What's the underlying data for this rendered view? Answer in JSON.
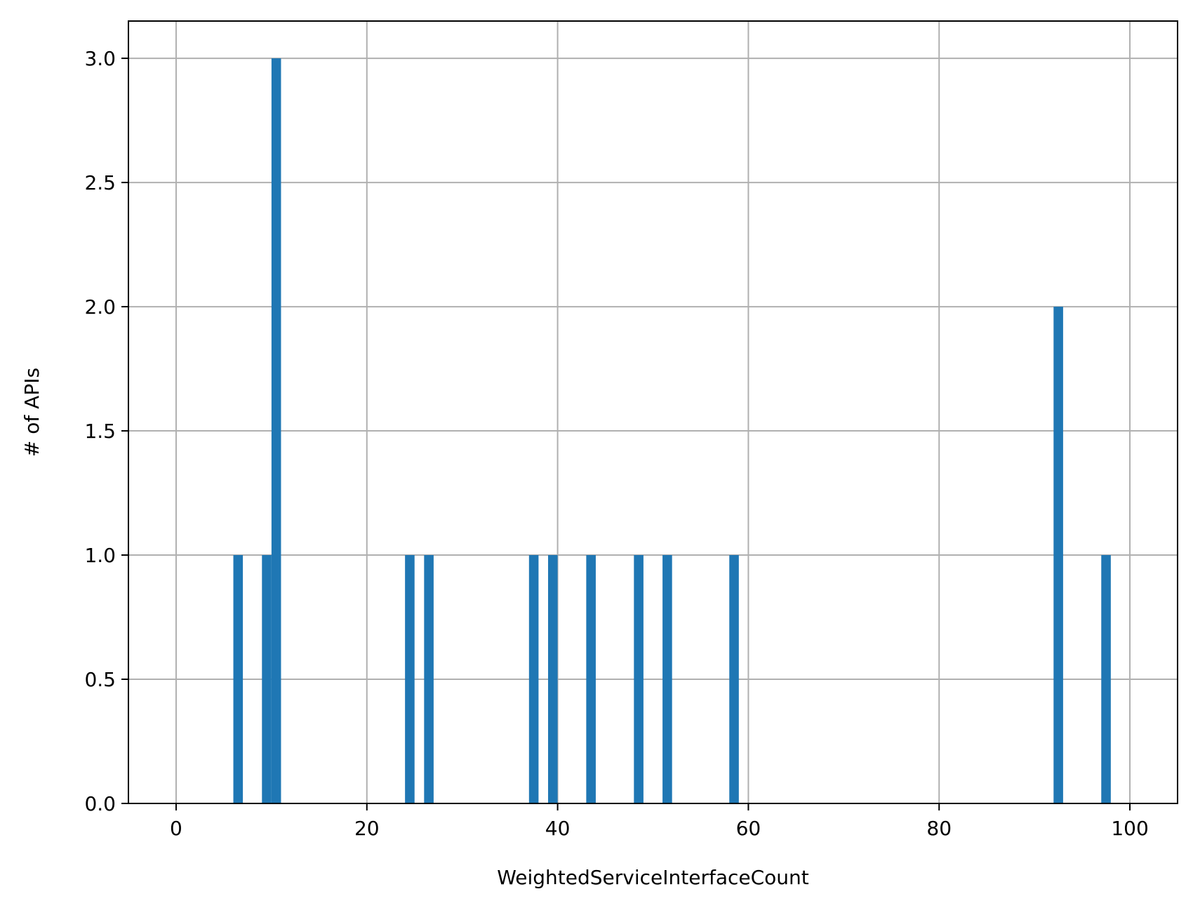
{
  "chart_data": {
    "type": "bar",
    "title": "",
    "xlabel": "WeightedServiceInterfaceCount",
    "ylabel": "# of APIs",
    "xlim": [
      -5,
      105
    ],
    "ylim": [
      0,
      3.15
    ],
    "bin_width": 1,
    "grid": true,
    "bar_color": "#1f77b4",
    "grid_color": "#b0b0b0",
    "x_ticks": [
      0,
      20,
      40,
      60,
      80,
      100
    ],
    "x_tick_labels": [
      "0",
      "20",
      "40",
      "60",
      "80",
      "100"
    ],
    "y_ticks": [
      0,
      0.5,
      1.0,
      1.5,
      2.0,
      2.5,
      3.0
    ],
    "y_tick_labels": [
      "0.0",
      "0.5",
      "1.0",
      "1.5",
      "2.0",
      "2.5",
      "3.0"
    ],
    "bins": [
      {
        "x": 6,
        "count": 1
      },
      {
        "x": 9,
        "count": 1
      },
      {
        "x": 10,
        "count": 3
      },
      {
        "x": 24,
        "count": 1
      },
      {
        "x": 26,
        "count": 1
      },
      {
        "x": 37,
        "count": 1
      },
      {
        "x": 39,
        "count": 1
      },
      {
        "x": 43,
        "count": 1
      },
      {
        "x": 48,
        "count": 1
      },
      {
        "x": 51,
        "count": 1
      },
      {
        "x": 58,
        "count": 1
      },
      {
        "x": 92,
        "count": 2
      },
      {
        "x": 97,
        "count": 1
      }
    ]
  }
}
